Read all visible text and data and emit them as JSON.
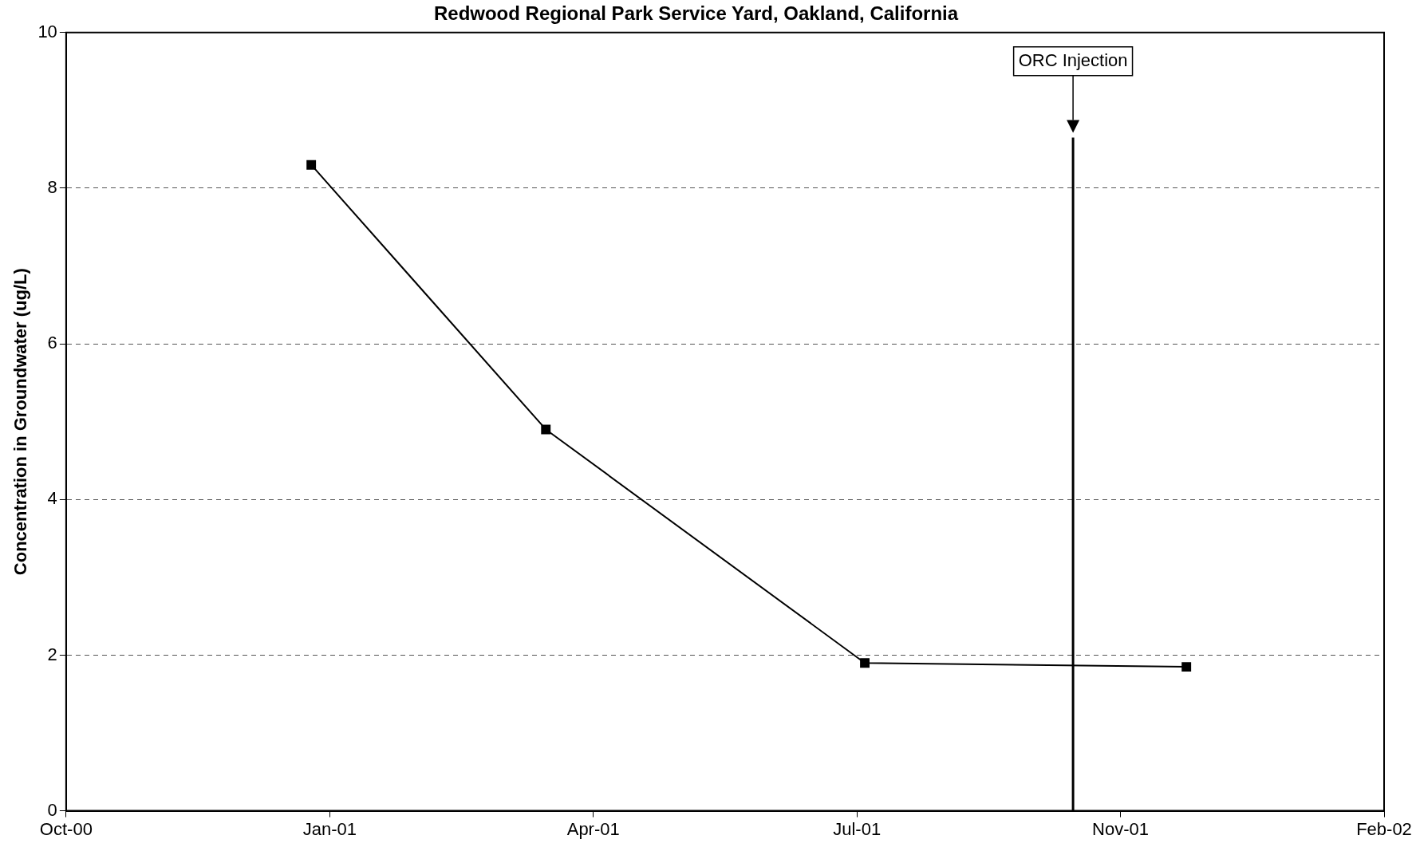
{
  "chart_data": {
    "type": "line",
    "title": "Redwood Regional Park Service Yard, Oakland, California",
    "ylabel": "Concentration in Groundwater (ug/L)",
    "x": [
      "2001-01-02",
      "2001-04-01",
      "2001-07-31",
      "2001-11-30"
    ],
    "series": [
      {
        "color": "#000000",
        "values": [
          8.3,
          4.9,
          1.9,
          1.85
        ]
      }
    ],
    "xlim": [
      "2000-10-01",
      "2002-02-13"
    ],
    "xticks": [
      {
        "value": "2000-10-01",
        "label": "Oct-00"
      },
      {
        "value": "2001-01-09",
        "label": "Jan-01"
      },
      {
        "value": "2001-04-19",
        "label": "Apr-01"
      },
      {
        "value": "2001-07-28",
        "label": "Jul-01"
      },
      {
        "value": "2001-11-05",
        "label": "Nov-01"
      },
      {
        "value": "2002-02-13",
        "label": "Feb-02"
      }
    ],
    "ylim": [
      0,
      10
    ],
    "yticks": [
      0,
      2,
      4,
      6,
      8,
      10
    ],
    "grid": "y",
    "marker": "square",
    "line_style": "solid",
    "legend": false,
    "ref_lines": [
      {
        "axis": "x",
        "value": "2001-10-18",
        "label": "ORC Injection",
        "color": "#000000"
      }
    ]
  }
}
